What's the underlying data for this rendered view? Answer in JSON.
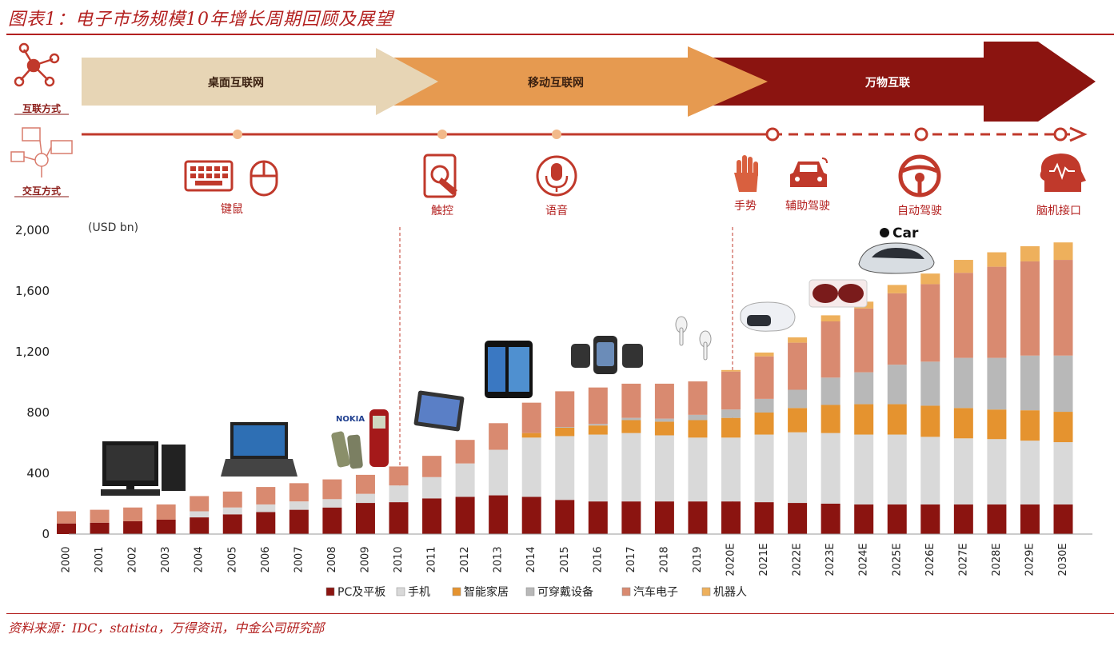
{
  "title": "图表1：电子市场规模10年增长周期回顾及展望",
  "source": "资料来源：IDC，statista，万得资讯，中金公司研究部",
  "eras": {
    "left_label": "互联方式",
    "items": [
      {
        "label": "桌面互联网",
        "color": "#e7d5b5"
      },
      {
        "label": "移动互联网",
        "color": "#e69a50"
      },
      {
        "label": "万物互联",
        "color": "#8b1410"
      }
    ]
  },
  "interaction": {
    "left_label": "交互方式",
    "methods": [
      {
        "label": "键鼠",
        "icon": "keyboard-mouse-icon"
      },
      {
        "label": "触控",
        "icon": "touch-tablet-icon"
      },
      {
        "label": "语音",
        "icon": "microphone-icon"
      },
      {
        "label": "手势",
        "icon": "hand-gesture-icon"
      },
      {
        "label": "辅助驾驶",
        "icon": "car-icon"
      },
      {
        "label": "自动驾驶",
        "icon": "steering-wheel-icon"
      },
      {
        "label": "脑机接口",
        "icon": "brain-head-icon"
      }
    ]
  },
  "device_annotations": {
    "car_label": "Car"
  },
  "colors": {
    "accent": "#b3201f",
    "pc": "#8b1410",
    "phone": "#d9d9d9",
    "smarthome": "#e5932f",
    "wearable": "#b8b8b8",
    "auto": "#d98a70",
    "robot": "#eeb05c"
  },
  "chart_data": {
    "type": "bar",
    "stacked": true,
    "unit_label": "(USD bn)",
    "categories": [
      "2000",
      "2001",
      "2002",
      "2003",
      "2004",
      "2005",
      "2006",
      "2007",
      "2008",
      "2009",
      "2010",
      "2011",
      "2012",
      "2013",
      "2014",
      "2015",
      "2016",
      "2017",
      "2018",
      "2019",
      "2020E",
      "2021E",
      "2022E",
      "2023E",
      "2024E",
      "2025E",
      "2026E",
      "2027E",
      "2028E",
      "2029E",
      "2030E"
    ],
    "yticks": [
      "0",
      "400",
      "800",
      "1,200",
      "1,600",
      "2,000"
    ],
    "ylim": [
      0,
      2000
    ],
    "legend_position": "bottom",
    "series": [
      {
        "name": "PC及平板",
        "color": "#8b1410",
        "values": [
          70,
          75,
          85,
          95,
          110,
          130,
          145,
          160,
          175,
          205,
          210,
          235,
          245,
          255,
          245,
          225,
          215,
          215,
          215,
          215,
          215,
          210,
          205,
          200,
          195,
          195,
          195,
          195,
          195,
          195,
          195
        ]
      },
      {
        "name": "手机",
        "color": "#d9d9d9",
        "values": [
          0,
          0,
          0,
          0,
          40,
          45,
          50,
          55,
          55,
          60,
          110,
          140,
          220,
          300,
          390,
          420,
          440,
          450,
          435,
          420,
          420,
          445,
          465,
          465,
          460,
          460,
          445,
          435,
          430,
          420,
          410
        ]
      },
      {
        "name": "智能家居",
        "color": "#e5932f",
        "values": [
          0,
          0,
          0,
          0,
          0,
          0,
          0,
          0,
          0,
          0,
          0,
          0,
          0,
          0,
          30,
          55,
          60,
          85,
          90,
          115,
          130,
          145,
          160,
          185,
          200,
          200,
          205,
          200,
          195,
          200,
          200
        ]
      },
      {
        "name": "可穿戴设备",
        "color": "#b8b8b8",
        "values": [
          0,
          0,
          0,
          0,
          0,
          0,
          0,
          0,
          0,
          0,
          0,
          0,
          0,
          0,
          0,
          5,
          10,
          15,
          20,
          35,
          55,
          90,
          120,
          180,
          210,
          260,
          290,
          330,
          340,
          360,
          370
        ]
      },
      {
        "name": "汽车电子",
        "color": "#d98a70",
        "values": [
          80,
          85,
          90,
          100,
          100,
          105,
          115,
          120,
          130,
          125,
          125,
          140,
          155,
          175,
          200,
          235,
          240,
          225,
          230,
          220,
          250,
          280,
          310,
          370,
          420,
          470,
          510,
          560,
          600,
          620,
          630
        ]
      },
      {
        "name": "机器人",
        "color": "#eeb05c",
        "values": [
          0,
          0,
          0,
          0,
          0,
          0,
          0,
          0,
          0,
          0,
          0,
          0,
          0,
          0,
          0,
          0,
          0,
          0,
          0,
          0,
          10,
          25,
          35,
          40,
          45,
          55,
          70,
          85,
          95,
          100,
          115
        ]
      }
    ]
  }
}
